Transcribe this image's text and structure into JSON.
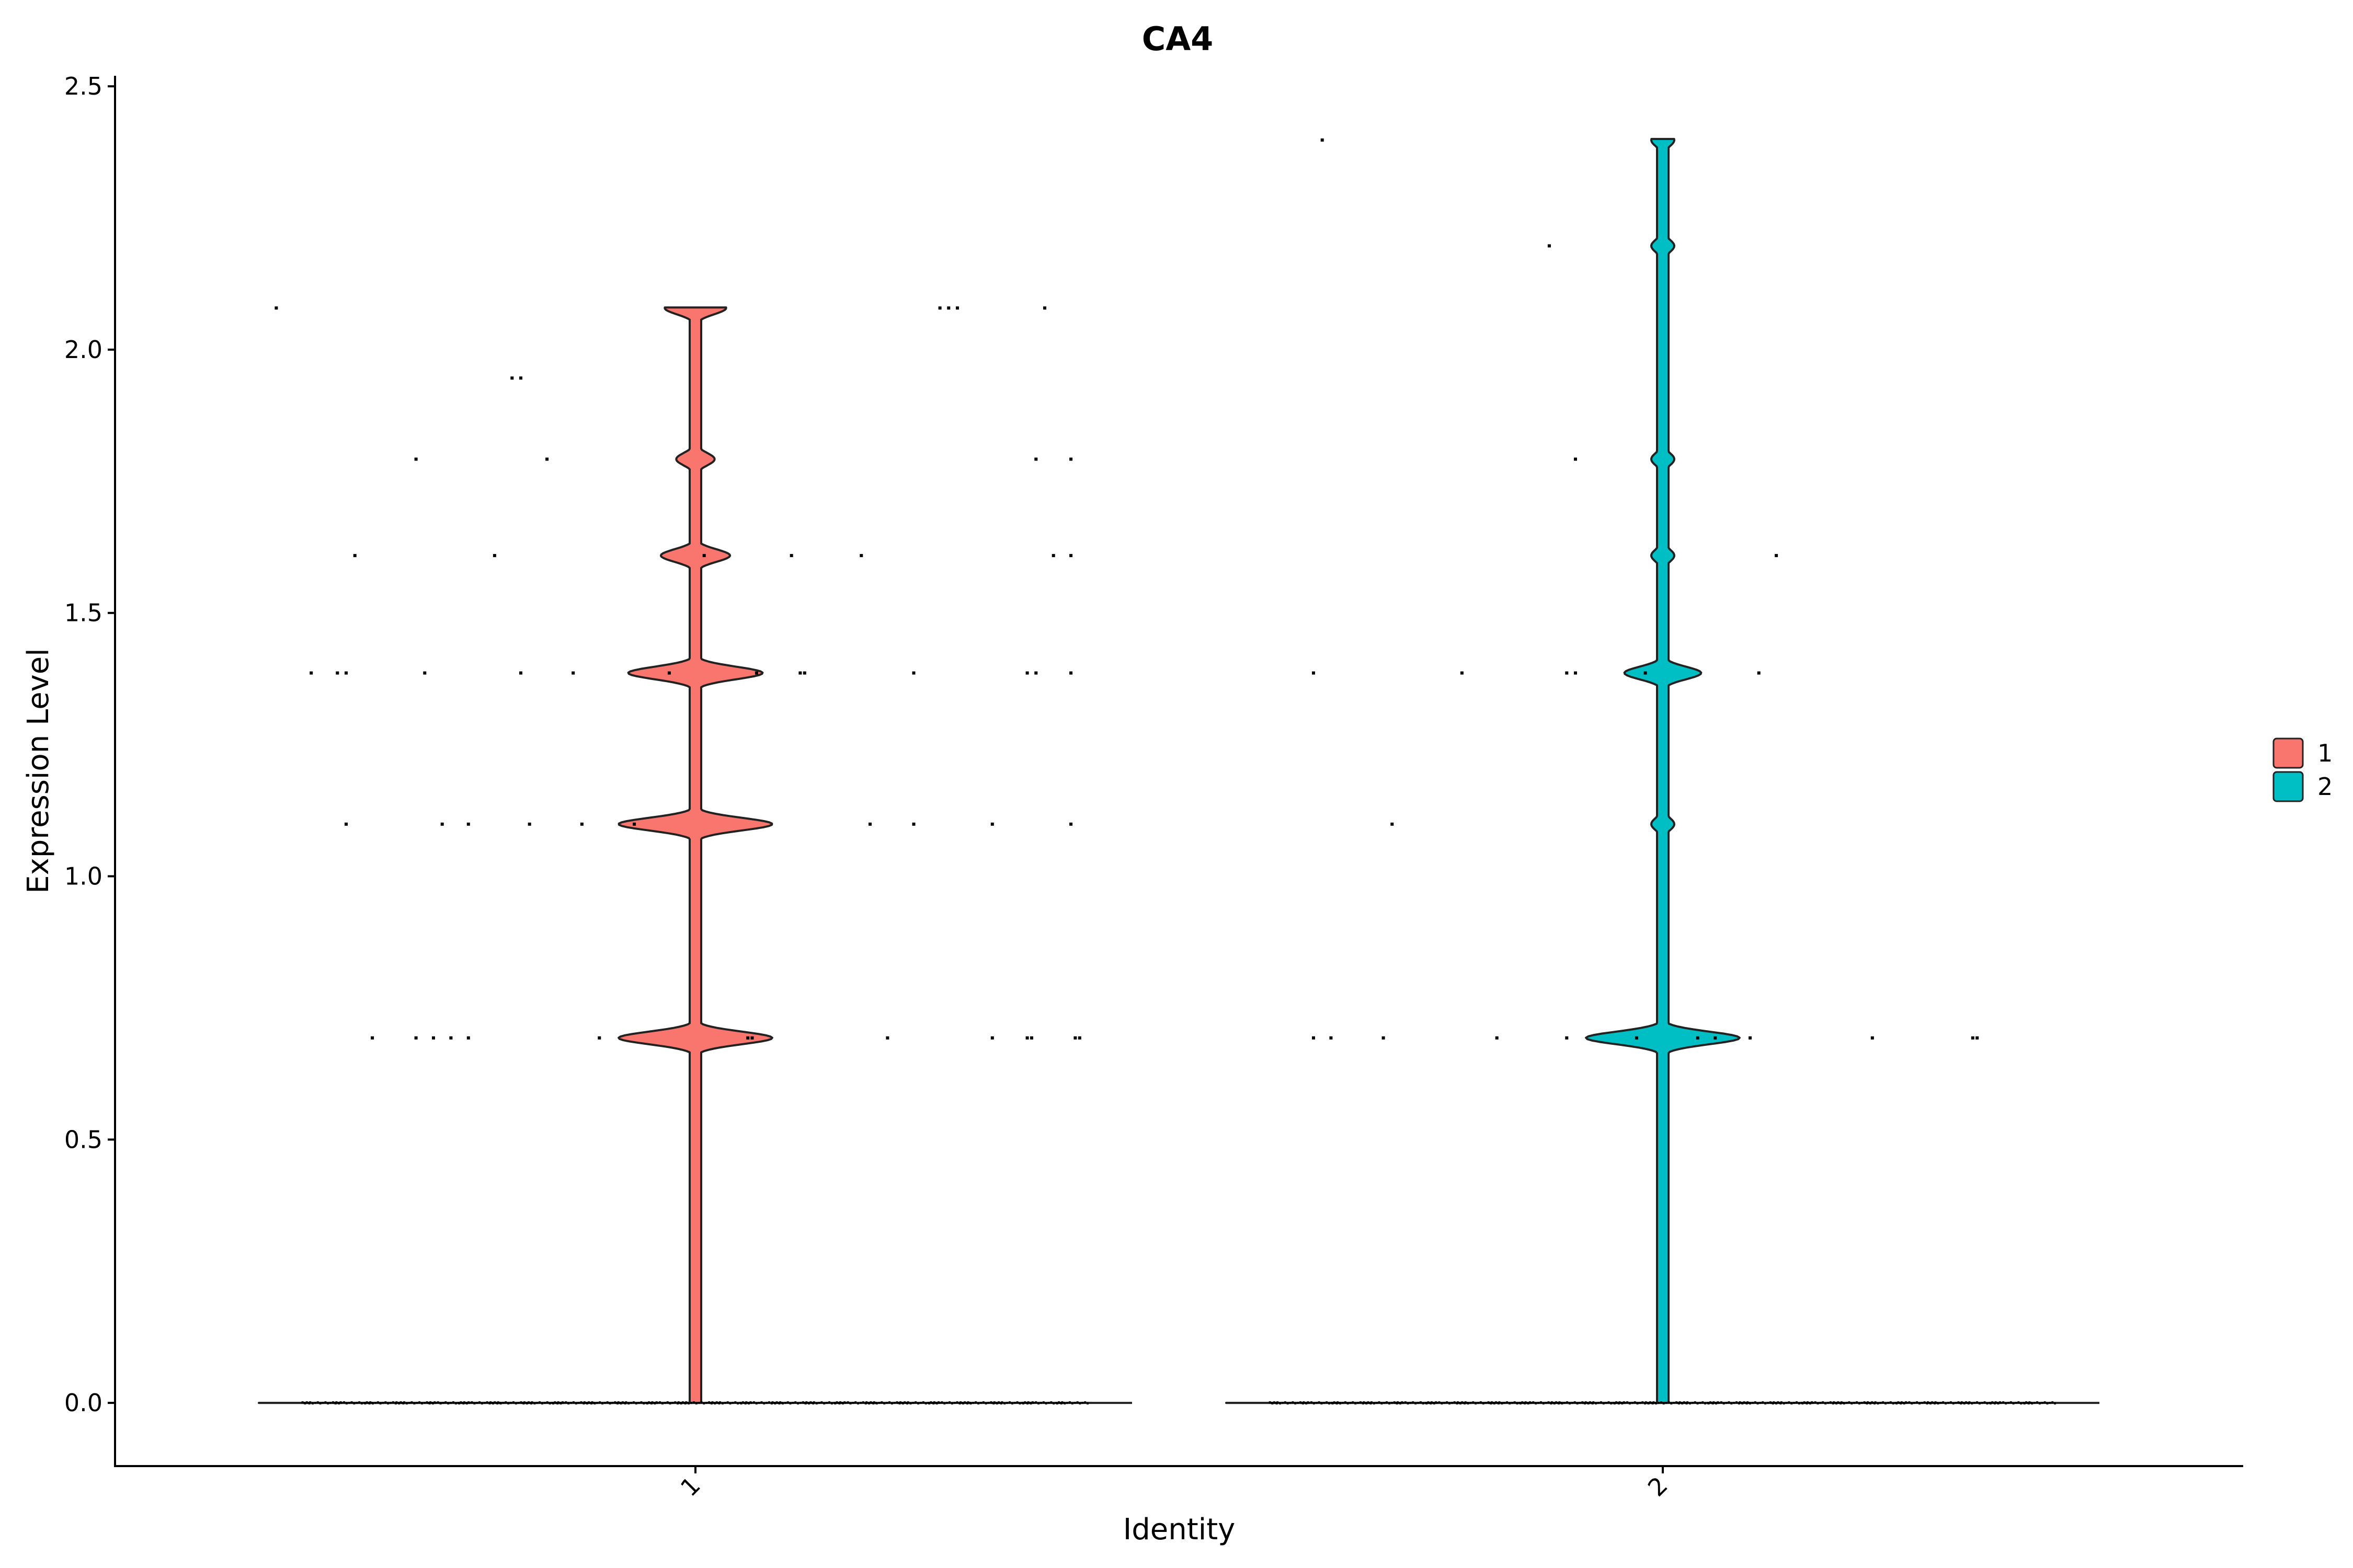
{
  "chart_data": {
    "type": "violin",
    "title": "CA4",
    "xlabel": "Identity",
    "ylabel": "Expression Level",
    "categories": [
      "1",
      "2"
    ],
    "ylim": [
      -0.12,
      2.52
    ],
    "yticks": [
      0.0,
      0.5,
      1.0,
      1.5,
      2.0,
      2.5
    ],
    "ytick_labels": [
      "0.0",
      "0.5",
      "1.0",
      "1.5",
      "2.0",
      "2.5"
    ],
    "legend": {
      "position": "right",
      "entries": [
        {
          "label": "1",
          "color": "#F8766D"
        },
        {
          "label": "2",
          "color": "#00BFC4"
        }
      ]
    },
    "series": [
      {
        "name": "1",
        "color": "#F8766D",
        "max": 2.08,
        "bulges": [
          {
            "y": 0.693,
            "halfwidth": 0.04
          },
          {
            "y": 1.099,
            "halfwidth": 0.04
          },
          {
            "y": 1.386,
            "halfwidth": 0.035
          },
          {
            "y": 1.609,
            "halfwidth": 0.018
          },
          {
            "y": 1.792,
            "halfwidth": 0.01
          },
          {
            "y": 2.079,
            "halfwidth": 0.016
          }
        ],
        "points": [
          {
            "x": -0.48,
            "y": 2.079
          },
          {
            "x": 0.28,
            "y": 2.079
          },
          {
            "x": 0.29,
            "y": 2.079
          },
          {
            "x": 0.3,
            "y": 2.079
          },
          {
            "x": 0.4,
            "y": 2.079
          },
          {
            "x": -0.2,
            "y": 1.946
          },
          {
            "x": -0.21,
            "y": 1.946
          },
          {
            "x": -0.32,
            "y": 1.792
          },
          {
            "x": -0.17,
            "y": 1.792
          },
          {
            "x": 0.39,
            "y": 1.792
          },
          {
            "x": 0.43,
            "y": 1.792
          },
          {
            "x": -0.39,
            "y": 1.609
          },
          {
            "x": -0.23,
            "y": 1.609
          },
          {
            "x": 0.01,
            "y": 1.609
          },
          {
            "x": 0.11,
            "y": 1.609
          },
          {
            "x": 0.19,
            "y": 1.609
          },
          {
            "x": 0.41,
            "y": 1.609
          },
          {
            "x": 0.43,
            "y": 1.609
          },
          {
            "x": -0.44,
            "y": 1.386
          },
          {
            "x": -0.4,
            "y": 1.386
          },
          {
            "x": -0.41,
            "y": 1.386
          },
          {
            "x": -0.31,
            "y": 1.386
          },
          {
            "x": -0.2,
            "y": 1.386
          },
          {
            "x": -0.14,
            "y": 1.386
          },
          {
            "x": -0.03,
            "y": 1.386
          },
          {
            "x": 0.07,
            "y": 1.386
          },
          {
            "x": 0.12,
            "y": 1.386
          },
          {
            "x": 0.125,
            "y": 1.386
          },
          {
            "x": 0.25,
            "y": 1.386
          },
          {
            "x": 0.38,
            "y": 1.386
          },
          {
            "x": 0.39,
            "y": 1.386
          },
          {
            "x": 0.43,
            "y": 1.386
          },
          {
            "x": -0.4,
            "y": 1.099
          },
          {
            "x": -0.29,
            "y": 1.099
          },
          {
            "x": -0.26,
            "y": 1.099
          },
          {
            "x": -0.19,
            "y": 1.099
          },
          {
            "x": -0.13,
            "y": 1.099
          },
          {
            "x": -0.07,
            "y": 1.099
          },
          {
            "x": 0.2,
            "y": 1.099
          },
          {
            "x": 0.25,
            "y": 1.099
          },
          {
            "x": 0.34,
            "y": 1.099
          },
          {
            "x": 0.43,
            "y": 1.099
          },
          {
            "x": -0.37,
            "y": 0.693
          },
          {
            "x": -0.32,
            "y": 0.693
          },
          {
            "x": -0.3,
            "y": 0.693
          },
          {
            "x": -0.28,
            "y": 0.693
          },
          {
            "x": -0.26,
            "y": 0.693
          },
          {
            "x": -0.11,
            "y": 0.693
          },
          {
            "x": 0.06,
            "y": 0.693
          },
          {
            "x": 0.065,
            "y": 0.693
          },
          {
            "x": 0.22,
            "y": 0.693
          },
          {
            "x": 0.34,
            "y": 0.693
          },
          {
            "x": 0.38,
            "y": 0.693
          },
          {
            "x": 0.385,
            "y": 0.693
          },
          {
            "x": 0.435,
            "y": 0.693
          },
          {
            "x": 0.44,
            "y": 0.693
          }
        ]
      },
      {
        "name": "2",
        "color": "#00BFC4",
        "max": 2.4,
        "bulges": [
          {
            "y": 0.693,
            "halfwidth": 0.04
          },
          {
            "y": 1.386,
            "halfwidth": 0.02
          },
          {
            "y": 1.099,
            "halfwidth": 0.006
          },
          {
            "y": 1.609,
            "halfwidth": 0.006
          },
          {
            "y": 1.792,
            "halfwidth": 0.006
          },
          {
            "y": 2.197,
            "halfwidth": 0.006
          },
          {
            "y": 2.398,
            "halfwidth": 0.006
          }
        ],
        "points": [
          {
            "x": -0.39,
            "y": 2.398
          },
          {
            "x": -0.13,
            "y": 2.197
          },
          {
            "x": -0.1,
            "y": 1.792
          },
          {
            "x": 0.13,
            "y": 1.609
          },
          {
            "x": -0.4,
            "y": 1.386
          },
          {
            "x": -0.23,
            "y": 1.386
          },
          {
            "x": -0.11,
            "y": 1.386
          },
          {
            "x": -0.1,
            "y": 1.386
          },
          {
            "x": -0.02,
            "y": 1.386
          },
          {
            "x": 0.11,
            "y": 1.386
          },
          {
            "x": -0.31,
            "y": 1.099
          },
          {
            "x": -0.4,
            "y": 0.693
          },
          {
            "x": -0.38,
            "y": 0.693
          },
          {
            "x": -0.32,
            "y": 0.693
          },
          {
            "x": -0.19,
            "y": 0.693
          },
          {
            "x": -0.11,
            "y": 0.693
          },
          {
            "x": -0.03,
            "y": 0.693
          },
          {
            "x": 0.04,
            "y": 0.693
          },
          {
            "x": 0.06,
            "y": 0.693
          },
          {
            "x": 0.1,
            "y": 0.693
          },
          {
            "x": 0.24,
            "y": 0.693
          },
          {
            "x": 0.355,
            "y": 0.693
          },
          {
            "x": 0.36,
            "y": 0.693
          }
        ]
      }
    ]
  }
}
